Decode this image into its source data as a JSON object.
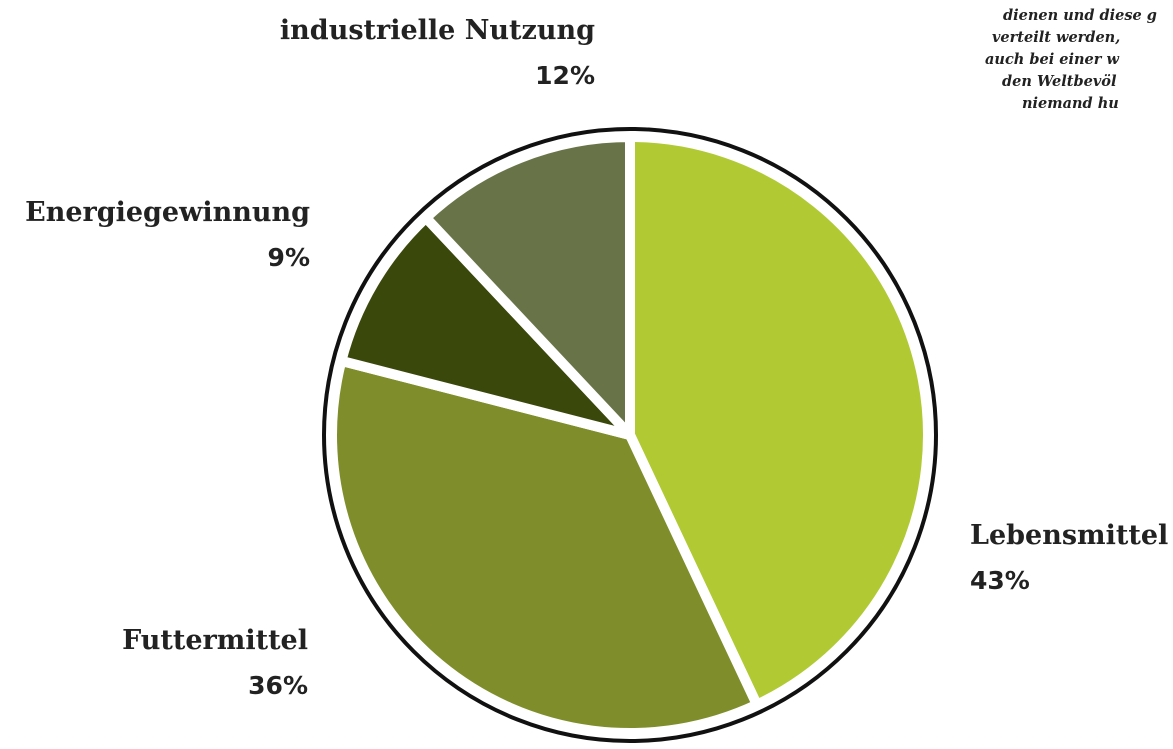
{
  "chart_data": {
    "type": "pie",
    "categories": [
      "Lebensmittel",
      "Futtermittel",
      "Energiegewinnung",
      "industrielle Nutzung"
    ],
    "values": [
      43,
      36,
      9,
      12
    ],
    "value_labels": [
      "43%",
      "36%",
      "9%",
      "12%"
    ],
    "colors": [
      "#b1ca34",
      "#7f8e2a",
      "#3b480b",
      "#687448"
    ],
    "annotation": [
      "dienen und diese g",
      "verteilt werden,",
      "auch bei einer w",
      "den Weltbevöl",
      "niemand hu"
    ]
  }
}
